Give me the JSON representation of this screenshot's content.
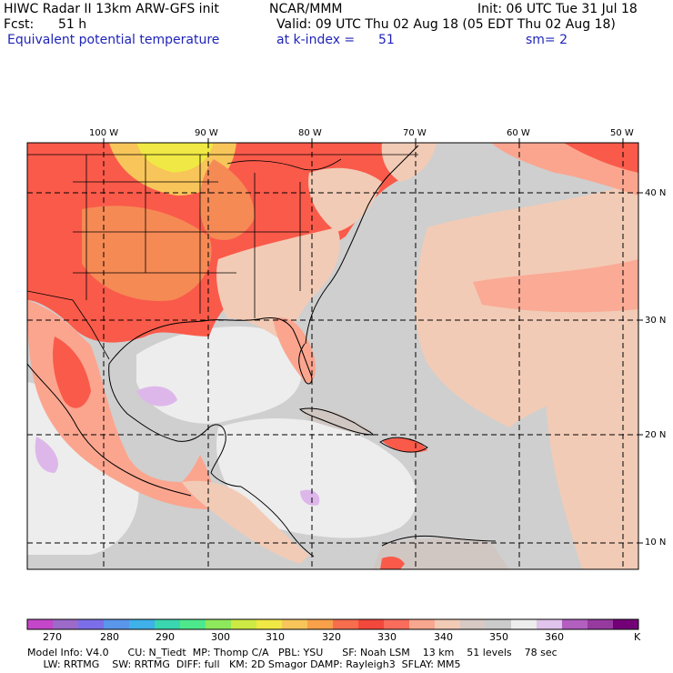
{
  "header": {
    "left_line1": "HIWC Radar II 13km ARW-GFS init",
    "center_line1": "NCAR/MMM",
    "init": "Init: 06 UTC Tue 31 Jul 18",
    "fcst_label": "Fcst:",
    "fcst_value": "51 h",
    "valid": "Valid: 09 UTC Thu 02 Aug 18 (05 EDT Thu 02 Aug 18)",
    "field": "Equivalent potential temperature",
    "level": "at k-index =",
    "level_value": "51",
    "smoothing": "sm= 2"
  },
  "map": {
    "lon_labels": [
      "100 W",
      "90 W",
      "80 W",
      "70 W",
      "60 W",
      "50 W"
    ],
    "lat_labels": [
      "40 N",
      "30 N",
      "20 N",
      "10 N"
    ],
    "colors": {
      "c335": "#fa5a4a",
      "c340": "#fba58f",
      "c345": "#f2cbb6",
      "c350": "#d0c7c3",
      "c355": "#cfcfcf",
      "c360": "#ededed",
      "c365": "#ddb7ea",
      "c330": "#ef4d3d",
      "c325": "#f58a55"
    }
  },
  "colorbar": {
    "colors": [
      "#c447c9",
      "#9c6ac9",
      "#7c6ee8",
      "#5a96ea",
      "#3fb0e8",
      "#3ad6b0",
      "#4ee88c",
      "#8ee85c",
      "#cdea44",
      "#f0e845",
      "#f8c55a",
      "#f8a04a",
      "#f76d4e",
      "#f3483c",
      "#fa6d5c",
      "#f8a78f",
      "#f2cbb6",
      "#d7c9c3",
      "#cbcbcb",
      "#ededed",
      "#e0c4ec",
      "#b25fc0",
      "#963aa0",
      "#730077"
    ],
    "labels": [
      "270",
      "280",
      "290",
      "300",
      "310",
      "320",
      "330",
      "340",
      "350",
      "360",
      "K"
    ]
  },
  "footer": {
    "line1": "Model Info: V4.0      CU: N_Tiedt  MP: Thomp C/A   PBL: YSU      SF: Noah LSM    13 km    51 levels    78 sec",
    "line2": "     LW: RRTMG    SW: RRTMG  DIFF: full   KM: 2D Smagor DAMP: Rayleigh3  SFLAY: MM5"
  }
}
